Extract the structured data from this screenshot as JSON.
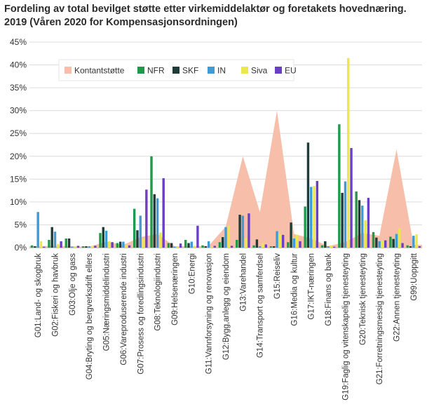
{
  "title_line1": "Fordeling av total bevilget støtte etter virkemiddelaktør og foretakets hovednæring.",
  "title_line2": "2019 (Våren 2020 for Kompensasjonsordningen)",
  "chart_data": {
    "type": "bar",
    "title": "Fordeling av total bevilget støtte etter virkemiddelaktør og foretakets hovednæring. 2019 (Våren 2020 for Kompensasjonsordningen)",
    "xlabel": "",
    "ylabel": "",
    "ylim": [
      0,
      45
    ],
    "yticks": [
      0,
      5,
      10,
      15,
      20,
      25,
      30,
      35,
      40,
      45
    ],
    "ytick_labels": [
      "0%",
      "5%",
      "10%",
      "15%",
      "20%",
      "25%",
      "30%",
      "35%",
      "40%",
      "45%"
    ],
    "grid": true,
    "legend_position": "top-left",
    "categories": [
      "G01:Land- og skogbruk",
      "G02:Fiskeri og havbruk",
      "G03:Olje og gass",
      "G04:Bryting og bergverksdrift ellers",
      "G05:Næringsmiddelindustri",
      "G06:Vareproduserende industri",
      "G07:Prosess og foredlingsindustri",
      "G08:Teknologiindustri",
      "G09:Helsenæringen",
      "G10:Energi",
      "G11:Vannforsyning og renovasjon",
      "G12:Bygg,anlegg og eiendom",
      "G13:Varehandel",
      "G14:Transport og samferdsel",
      "G15:Reiseliv",
      "G16:Media og kultur",
      "G17:IKT-næringen",
      "G18:Finans og bank",
      "G19:Faglig og vitenskapelig tjenesteyting",
      "G20:Teknisk tjenesteyting",
      "G21:Forretningsmessig tjenesteyting",
      "G22:Annen tjenesteyting",
      "G99:Uoppgitt"
    ],
    "area_series": {
      "name": "Kontantstøtte",
      "color": "#f7bfaa",
      "values": [
        0.3,
        0.4,
        0.3,
        0.2,
        1.3,
        0.6,
        2.3,
        3.0,
        0.3,
        0.3,
        0.4,
        4.6,
        20.0,
        7.8,
        30.0,
        3.0,
        2.0,
        0.3,
        1.2,
        3.2,
        2.6,
        21.5,
        0.6
      ]
    },
    "series": [
      {
        "name": "NFR",
        "color": "#1f9a4a",
        "values": [
          0.5,
          1.7,
          2.0,
          0.3,
          3.2,
          1.0,
          8.5,
          20.0,
          1.0,
          1.7,
          0.5,
          1.2,
          1.7,
          0.5,
          0.3,
          1.2,
          9.0,
          0.5,
          27.0,
          12.3,
          3.4,
          2.4,
          0.5
        ]
      },
      {
        "name": "SKF",
        "color": "#1e3d3a",
        "values": [
          0.3,
          4.5,
          2.0,
          0.3,
          4.5,
          1.3,
          3.8,
          11.7,
          1.0,
          1.0,
          0.3,
          2.3,
          7.2,
          1.8,
          0.3,
          5.5,
          23.0,
          1.4,
          12.0,
          10.4,
          2.2,
          1.9,
          0.3
        ]
      },
      {
        "name": "IN",
        "color": "#3e9bd6",
        "values": [
          7.8,
          3.5,
          0.2,
          0.3,
          3.7,
          1.3,
          7.0,
          10.8,
          0.2,
          1.3,
          1.4,
          4.5,
          7.0,
          0.3,
          3.6,
          2.0,
          13.3,
          0.3,
          14.5,
          9.2,
          1.4,
          3.0,
          2.6
        ]
      },
      {
        "name": "Siva",
        "color": "#eae84c",
        "values": [
          1.4,
          0.8,
          0.2,
          0.4,
          1.4,
          0.6,
          2.0,
          3.3,
          0.2,
          0.4,
          0.2,
          4.8,
          2.1,
          1.0,
          3.0,
          2.8,
          13.5,
          0.5,
          41.5,
          6.0,
          1.5,
          4.2,
          2.9
        ]
      },
      {
        "name": "EU",
        "color": "#6b3fc4",
        "values": [
          0.2,
          1.4,
          0.4,
          0.4,
          1.2,
          0.5,
          12.7,
          15.2,
          0.9,
          4.8,
          0.4,
          0.4,
          7.5,
          0.7,
          2.8,
          1.4,
          14.6,
          0.2,
          21.8,
          10.9,
          1.6,
          1.0,
          0.3
        ]
      }
    ]
  }
}
